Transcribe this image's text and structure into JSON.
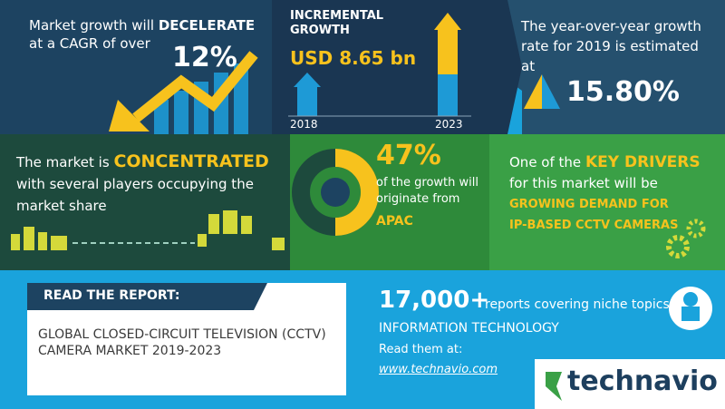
{
  "growth": {
    "lead": "Market growth will",
    "emphasis": "DECELERATE",
    "tail": "at a CAGR of over",
    "value": "12%"
  },
  "incremental": {
    "label": "INCREMENTAL GROWTH",
    "value": "USD 8.65 bn",
    "start_year": "2018",
    "end_year": "2023"
  },
  "yoy": {
    "text": "The year-over-year growth rate for 2019 is estimated at",
    "value": "15.80%"
  },
  "concentration": {
    "lead": "The market is",
    "emphasis": "CONCENTRATED",
    "tail": "with several players occupying the market share"
  },
  "region": {
    "value": "47%",
    "text": "of the growth will originate from",
    "name": "APAC"
  },
  "drivers": {
    "lead": "One of the",
    "emphasis": "KEY DRIVERS",
    "tail": "for this market will be",
    "driver": "GROWING DEMAND FOR IP-BASED CCTV CAMERAS"
  },
  "report": {
    "heading": "READ THE REPORT:",
    "title": "GLOBAL CLOSED-CIRCUIT TELEVISION (CCTV) CAMERA MARKET 2019-2023"
  },
  "promo": {
    "count": "17,000+",
    "count_text": "reports covering niche topics",
    "category": "INFORMATION TECHNOLOGY",
    "cta": "Read them at:",
    "url": "www.technavio.com",
    "brand": "technavio"
  }
}
